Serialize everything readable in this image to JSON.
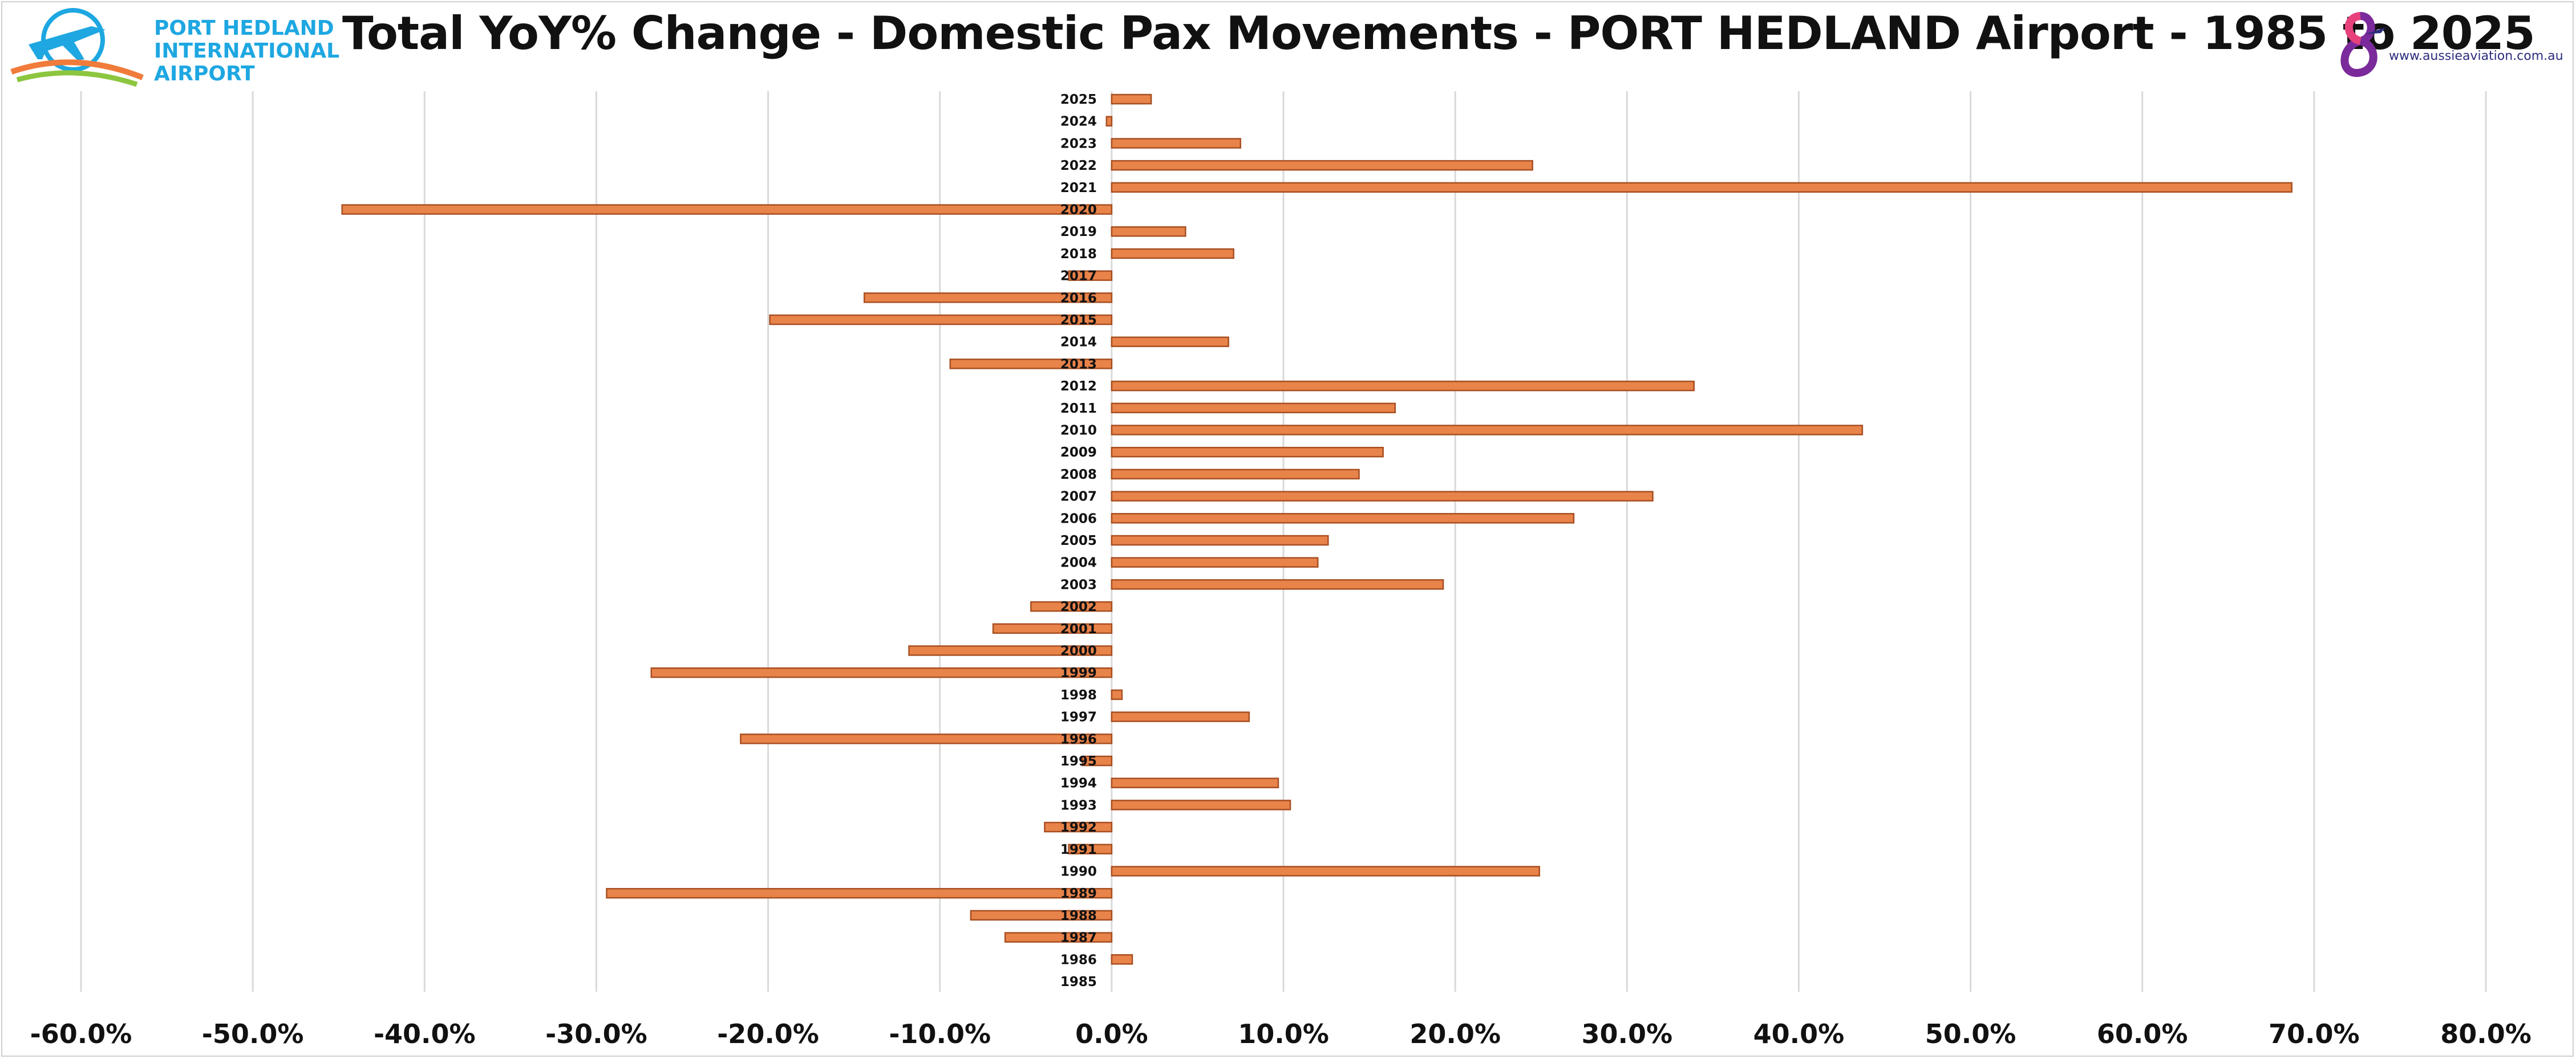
{
  "header": {
    "title": "Total YoY% Change - Domestic Pax Movements - PORT HEDLAND Airport - 1985 to 2025"
  },
  "logos": {
    "left": {
      "line1": "PORT HEDLAND",
      "line2": "INTERNATIONAL",
      "line3": "AIRPORT",
      "icon": "plane-icon",
      "color": "#1ea7e1"
    },
    "right": {
      "url": "www.aussieaviation.com.au",
      "icon": "aussie-aviation-logo-icon"
    }
  },
  "colors": {
    "bar": "#e8834a",
    "bar_edge": "#a84f22",
    "grid": "#d9d9d9"
  },
  "chart_data": {
    "type": "bar",
    "orientation": "horizontal",
    "title": "Total YoY% Change - Domestic Pax Movements - PORT HEDLAND Airport - 1985 to 2025",
    "xlim": [
      -60,
      80
    ],
    "x_ticks": [
      "-60.0%",
      "-50.0%",
      "-40.0%",
      "-30.0%",
      "-20.0%",
      "-10.0%",
      "0.0%",
      "10.0%",
      "20.0%",
      "30.0%",
      "40.0%",
      "50.0%",
      "60.0%",
      "70.0%",
      "80.0%"
    ],
    "grid": true,
    "legend": "none",
    "categories": [
      "2025",
      "2024",
      "2023",
      "2022",
      "2021",
      "2020",
      "2019",
      "2018",
      "2017",
      "2016",
      "2015",
      "2014",
      "2013",
      "2012",
      "2011",
      "2010",
      "2009",
      "2008",
      "2007",
      "2006",
      "2005",
      "2004",
      "2003",
      "2002",
      "2001",
      "2000",
      "1999",
      "1998",
      "1997",
      "1996",
      "1995",
      "1994",
      "1993",
      "1992",
      "1991",
      "1990",
      "1989",
      "1988",
      "1987",
      "1986",
      "1985"
    ],
    "values": [
      2.3,
      -0.3,
      7.5,
      24.5,
      68.7,
      -44.8,
      4.3,
      7.1,
      -2.5,
      -14.4,
      -19.9,
      6.8,
      -9.4,
      33.9,
      16.5,
      43.7,
      15.8,
      14.4,
      31.5,
      26.9,
      12.6,
      12.0,
      19.3,
      -4.7,
      -6.9,
      -11.8,
      -26.8,
      0.6,
      8.0,
      -21.6,
      -1.7,
      9.7,
      10.4,
      -3.9,
      -2.5,
      24.9,
      -29.4,
      -8.2,
      -6.2,
      1.2,
      0.0
    ]
  }
}
